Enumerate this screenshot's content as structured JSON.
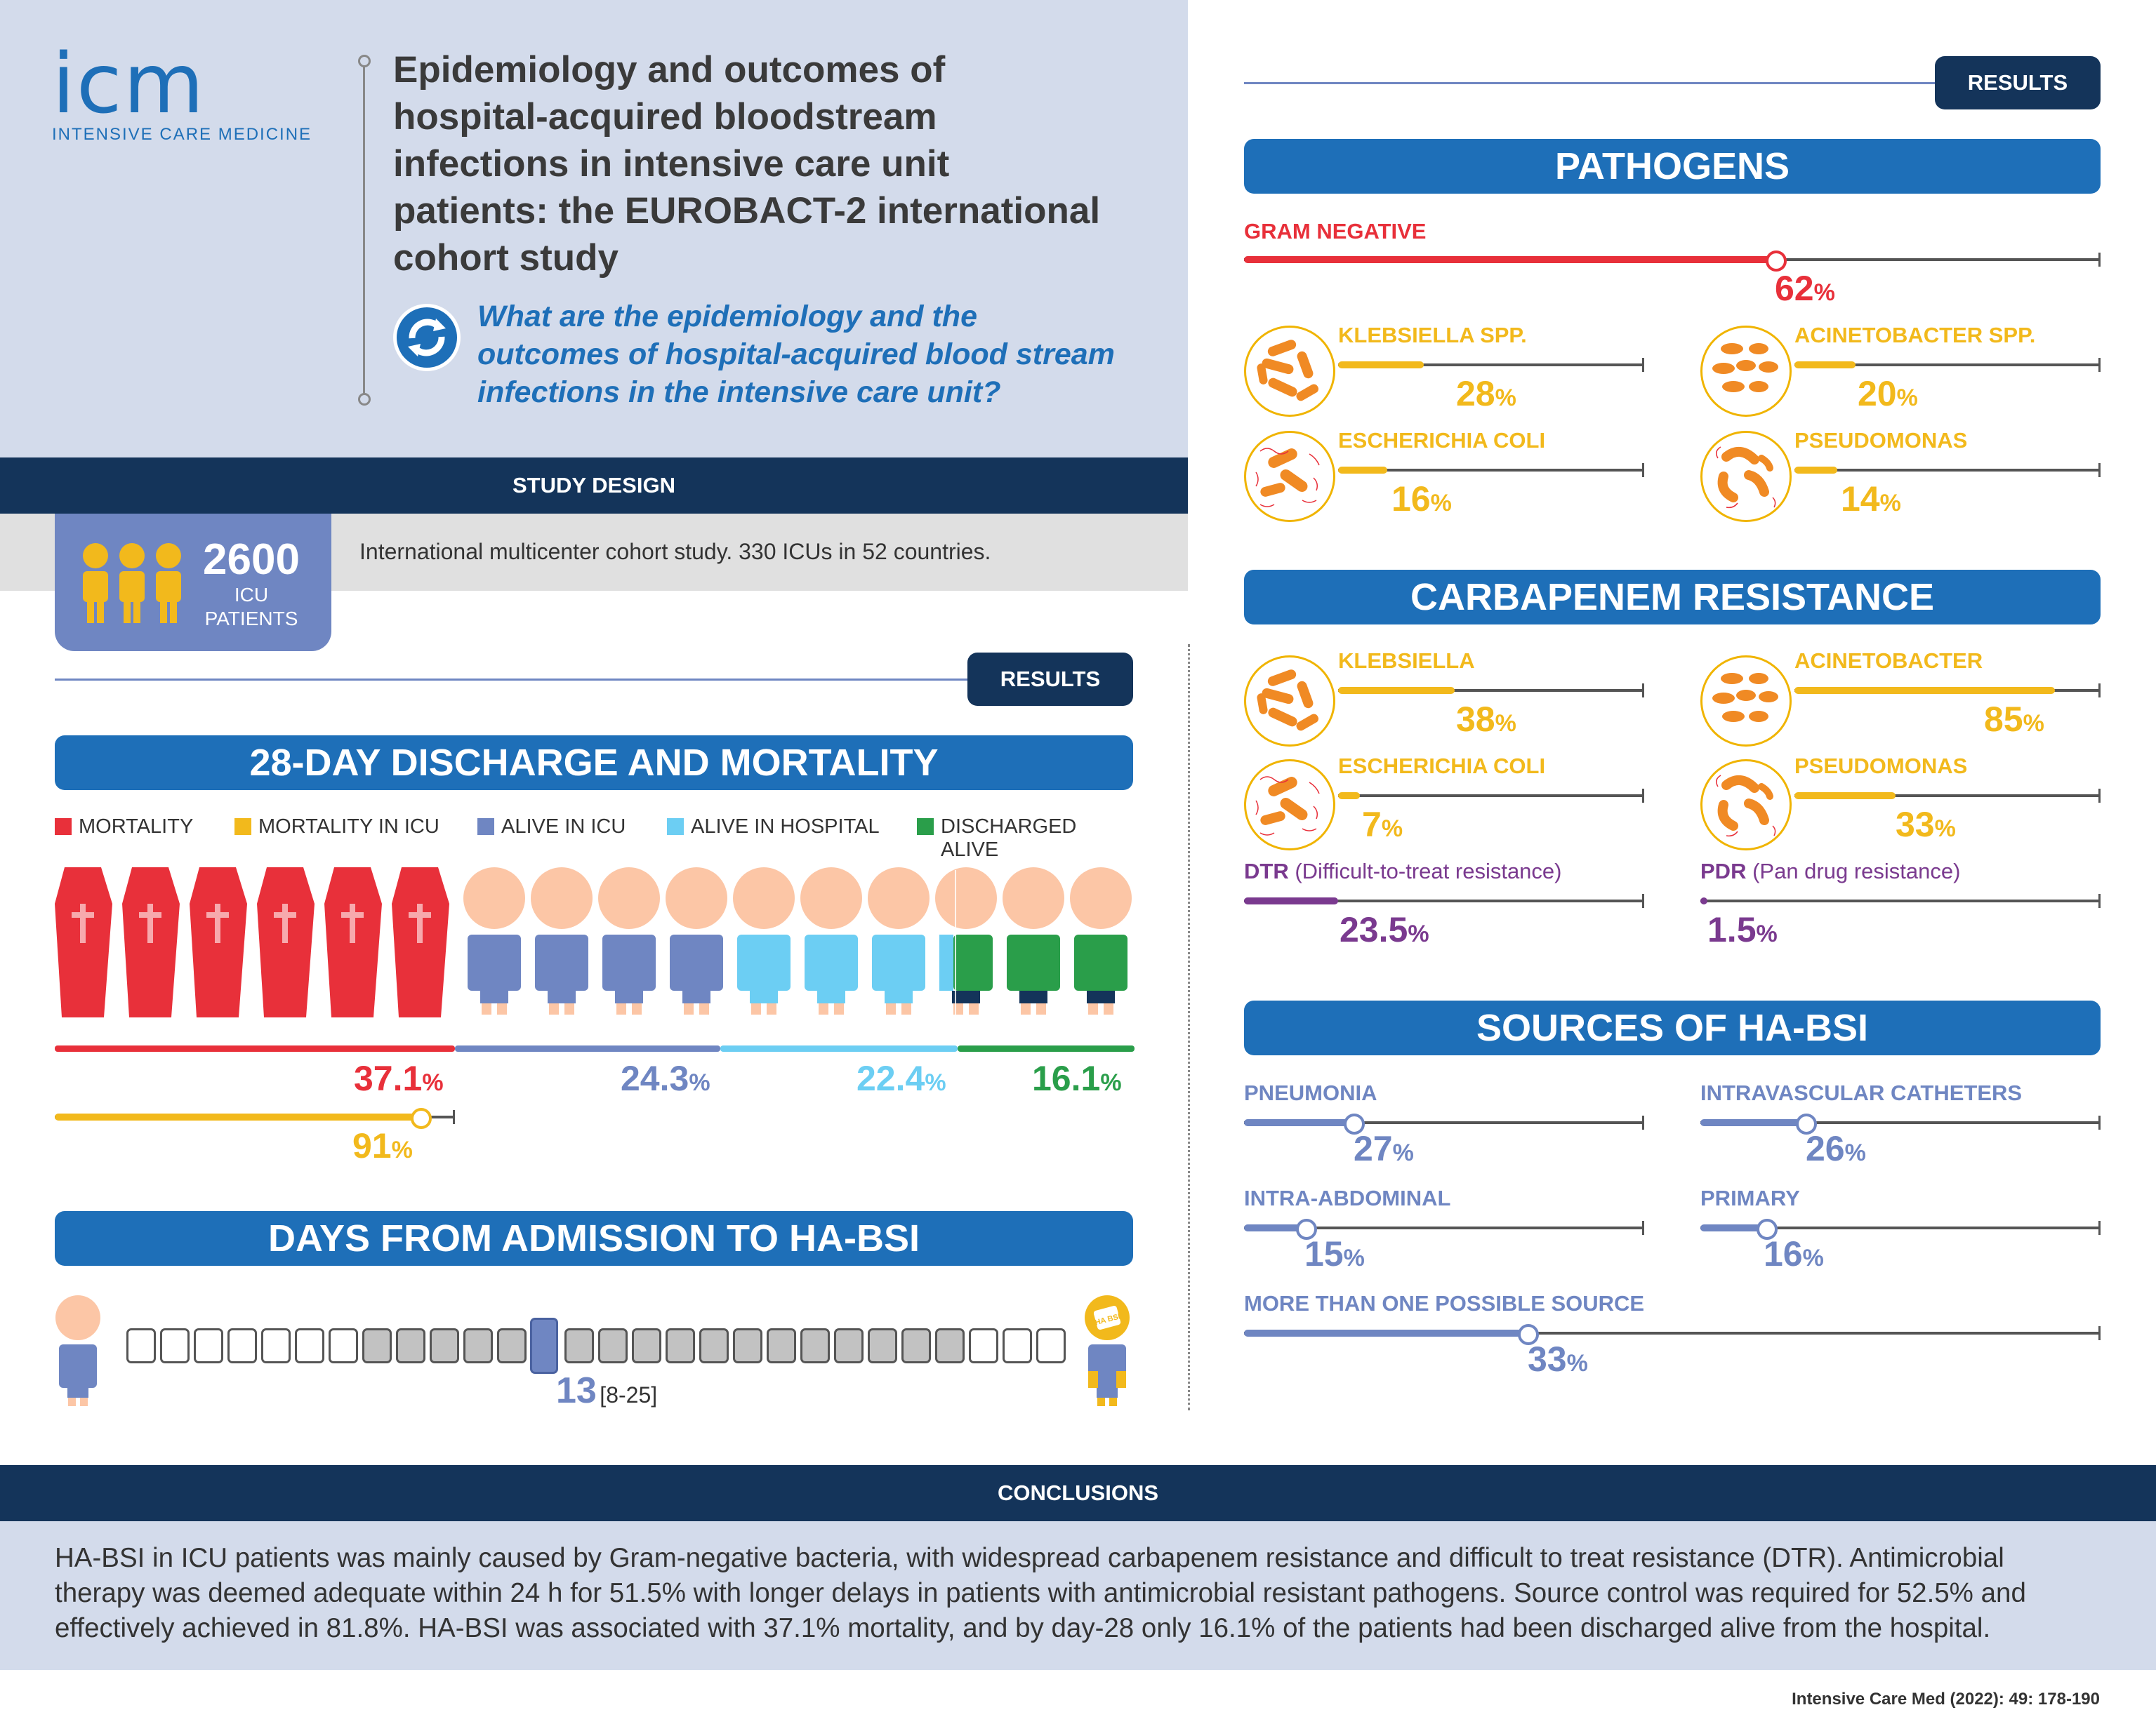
{
  "logo": {
    "letters": "icm",
    "subtitle": "INTENSIVE CARE MEDICINE"
  },
  "title": "Epidemiology and outcomes of hospital-acquired bloodstream infections in intensive care unit patients: the EUROBACT-2 international cohort study",
  "title_lines": [
    "Epidemiology and outcomes of",
    "hospital-acquired bloodstream",
    "infections in intensive care unit",
    "patients: the EUROBACT-2 international",
    "cohort study"
  ],
  "question_lines": [
    "What are the epidemiology and the",
    "outcomes of hospital-acquired blood stream",
    "infections in the intensive care unit?"
  ],
  "study_design": {
    "header": "STUDY DESIGN",
    "patients_count": "2600",
    "patients_label_1": "ICU",
    "patients_label_2": "PATIENTS",
    "description": "International multicenter cohort study. 330 ICUs in 52 countries."
  },
  "results_tag": "RESULTS",
  "discharge": {
    "title": "28-DAY DISCHARGE AND MORTALITY",
    "legend": [
      {
        "label": "MORTALITY",
        "color": "#e8303a"
      },
      {
        "label": "MORTALITY IN ICU",
        "color": "#f2b91c"
      },
      {
        "label": "ALIVE IN ICU",
        "color": "#6f86c2"
      },
      {
        "label": "ALIVE IN HOSPITAL",
        "color": "#6ccef3"
      },
      {
        "label": "DISCHARGED ALIVE",
        "color": "#2a9e4a"
      }
    ],
    "mortality": {
      "value": "37.1",
      "unit": "%",
      "fraction": 0.371
    },
    "alive_icu": {
      "value": "24.3",
      "unit": "%",
      "fraction": 0.243
    },
    "alive_hospital": {
      "value": "22.4",
      "unit": "%",
      "fraction": 0.224
    },
    "discharged": {
      "value": "16.1",
      "unit": "%",
      "fraction": 0.161
    },
    "mortality_icu": {
      "value": "91",
      "unit": "%",
      "fraction": 0.91
    }
  },
  "days": {
    "title": "DAYS FROM ADMISSION TO HA-BSI",
    "median": "13",
    "iqr": "[8-25]",
    "badge_text": "HA BSI"
  },
  "pathogens": {
    "title": "PATHOGENS",
    "gram_negative": {
      "label": "GRAM NEGATIVE",
      "value": "62",
      "unit": "%",
      "fraction": 0.62
    },
    "items": [
      {
        "label": "KLEBSIELLA SPP.",
        "value": "28",
        "unit": "%",
        "fraction": 0.28
      },
      {
        "label": "ACINETOBACTER SPP.",
        "value": "20",
        "unit": "%",
        "fraction": 0.2
      },
      {
        "label": "ESCHERICHIA COLI",
        "value": "16",
        "unit": "%",
        "fraction": 0.16
      },
      {
        "label": "PSEUDOMONAS",
        "value": "14",
        "unit": "%",
        "fraction": 0.14
      }
    ]
  },
  "carbapenem": {
    "title": "CARBAPENEM RESISTANCE",
    "items": [
      {
        "label": "KLEBSIELLA",
        "value": "38",
        "unit": "%",
        "fraction": 0.38
      },
      {
        "label": "ACINETOBACTER",
        "value": "85",
        "unit": "%",
        "fraction": 0.85
      },
      {
        "label": "ESCHERICHIA COLI",
        "value": "7",
        "unit": "%",
        "fraction": 0.07
      },
      {
        "label": "PSEUDOMONAS",
        "value": "33",
        "unit": "%",
        "fraction": 0.33
      }
    ],
    "dtr": {
      "abbr": "DTR",
      "desc": "(Difficult-to-treat resistance)",
      "value": "23.5",
      "unit": "%",
      "fraction": 0.235
    },
    "pdr": {
      "abbr": "PDR",
      "desc": "(Pan drug resistance)",
      "value": "1.5",
      "unit": "%",
      "fraction": 0.015
    }
  },
  "sources": {
    "title": "SOURCES OF HA-BSI",
    "items": [
      {
        "label": "PNEUMONIA",
        "value": "27",
        "unit": "%",
        "fraction": 0.27
      },
      {
        "label": "INTRAVASCULAR CATHETERS",
        "value": "26",
        "unit": "%",
        "fraction": 0.26
      },
      {
        "label": "INTRA-ABDOMINAL",
        "value": "15",
        "unit": "%",
        "fraction": 0.15
      },
      {
        "label": "PRIMARY",
        "value": "16",
        "unit": "%",
        "fraction": 0.16
      },
      {
        "label": "MORE THAN ONE POSSIBLE SOURCE",
        "value": "33",
        "unit": "%",
        "fraction": 0.33
      }
    ]
  },
  "conclusions": {
    "header": "CONCLUSIONS",
    "lines": [
      "HA-BSI in ICU patients was mainly caused by Gram-negative bacteria, with widespread carbapenem resistance and difficult to treat resistance (DTR). Antimicrobial",
      "therapy was deemed adequate within 24 h for 51.5% with longer delays in patients with antimicrobial resistant pathogens. Source control was required for 52.5% and",
      "effectively achieved in 81.8%. HA-BSI was associated with 37.1% mortality, and by day-28 only 16.1% of the patients had been discharged alive from the hospital."
    ]
  },
  "citation": "Intensive Care Med (2022): 49: 178-190",
  "colors": {
    "navy": "#14345a",
    "blue": "#1e6fb8",
    "red": "#e8303a",
    "yellow": "#f2b91c",
    "purple": "#7a3a8f",
    "periwinkle": "#6f86c2",
    "sky": "#6ccef3",
    "green": "#2a9e4a",
    "lavender": "#d3dbeb"
  }
}
